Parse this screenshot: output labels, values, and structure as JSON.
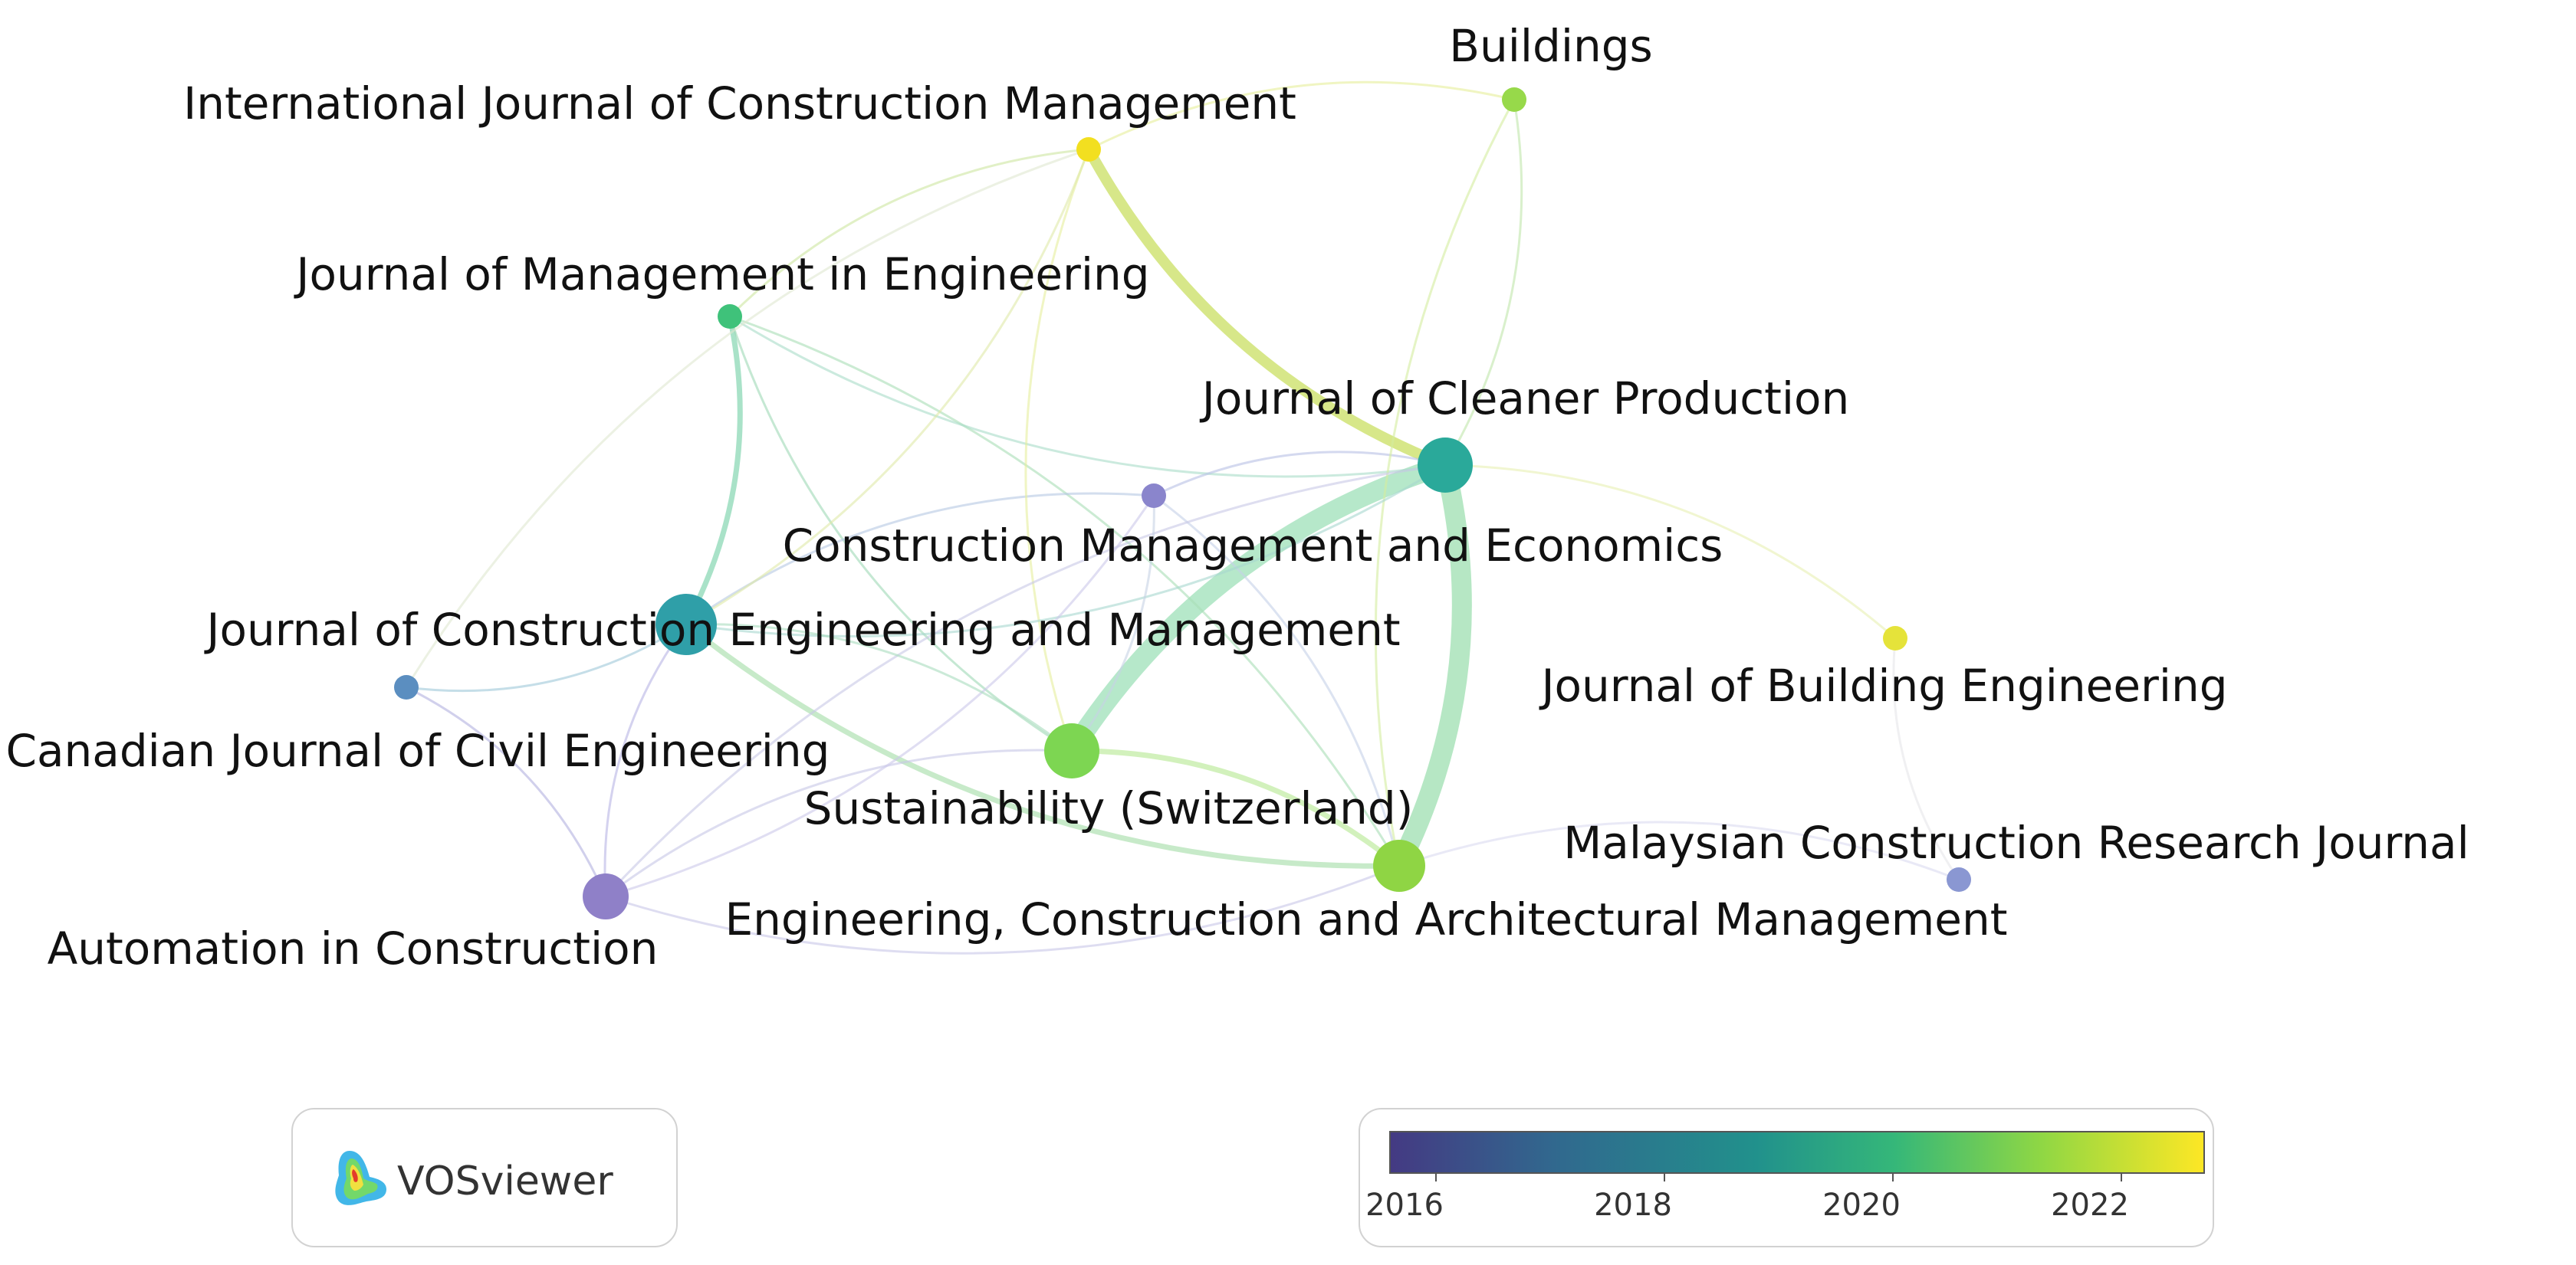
{
  "network": {
    "nodes": [
      {
        "id": "ijcm",
        "label": "International Journal of Construction Management",
        "color": "#f2df20",
        "size": "small"
      },
      {
        "id": "buildings",
        "label": "Buildings",
        "color": "#97d94a",
        "size": "small"
      },
      {
        "id": "jme",
        "label": "Journal of Management in Engineering",
        "color": "#3fc27a",
        "size": "small"
      },
      {
        "id": "jcp",
        "label": "Journal of Cleaner Production",
        "color": "#2aa99a",
        "size": "large"
      },
      {
        "id": "cme",
        "label": "Construction Management and Economics",
        "color": "#8a85cc",
        "size": "small"
      },
      {
        "id": "jceam",
        "label": "Journal of Construction Engineering and Management",
        "color": "#2f9fa8",
        "size": "large"
      },
      {
        "id": "cjce",
        "label": "Canadian Journal of Civil Engineering",
        "color": "#5b8ec0",
        "size": "small"
      },
      {
        "id": "sust",
        "label": "Sustainability (Switzerland)",
        "color": "#7dd652",
        "size": "large"
      },
      {
        "id": "jbe",
        "label": "Journal of Building Engineering",
        "color": "#e5e33a",
        "size": "small"
      },
      {
        "id": "ecam",
        "label": "Engineering, Construction and Architectural Management",
        "color": "#8fd544",
        "size": "large"
      },
      {
        "id": "mcrj",
        "label": "Malaysian Construction Research Journal",
        "color": "#8a97d2",
        "size": "small"
      },
      {
        "id": "aic",
        "label": "Automation in Construction",
        "color": "#8f80c8",
        "size": "large"
      }
    ],
    "links": [
      {
        "s": "ijcm",
        "t": "jcp",
        "w": 3,
        "c": "#c9df62"
      },
      {
        "s": "jcp",
        "t": "ecam",
        "w": 4,
        "c": "#9edfb0"
      },
      {
        "s": "jcp",
        "t": "sust",
        "w": 4,
        "c": "#9ee0b8"
      },
      {
        "s": "jme",
        "t": "jceam",
        "w": 2,
        "c": "#6fcfa3"
      },
      {
        "s": "jceam",
        "t": "ecam",
        "w": 2,
        "c": "#a2dca5"
      },
      {
        "s": "sust",
        "t": "ecam",
        "w": 2,
        "c": "#b4e890"
      },
      {
        "s": "jceam",
        "t": "aic",
        "w": 1,
        "c": "#b7b4e4"
      },
      {
        "s": "cjce",
        "t": "aic",
        "w": 1,
        "c": "#b3b0e0"
      },
      {
        "s": "cjce",
        "t": "jceam",
        "w": 1,
        "c": "#9fc8d8"
      },
      {
        "s": "jme",
        "t": "ijcm",
        "w": 1,
        "c": "#cde6a0"
      },
      {
        "s": "jme",
        "t": "sust",
        "w": 1,
        "c": "#9ed9b5"
      },
      {
        "s": "jme",
        "t": "ecam",
        "w": 1,
        "c": "#a8ddb5"
      },
      {
        "s": "jme",
        "t": "jcp",
        "w": 1,
        "c": "#a8dcc8"
      },
      {
        "s": "cme",
        "t": "jcp",
        "w": 1,
        "c": "#b8c0e4"
      },
      {
        "s": "cme",
        "t": "jceam",
        "w": 1,
        "c": "#b6c8e2"
      },
      {
        "s": "cme",
        "t": "ecam",
        "w": 1,
        "c": "#c4d0e8"
      },
      {
        "s": "buildings",
        "t": "ijcm",
        "w": 1,
        "c": "#e6ef9a"
      },
      {
        "s": "buildings",
        "t": "jcp",
        "w": 1,
        "c": "#bfe6aa"
      },
      {
        "s": "buildings",
        "t": "ecam",
        "w": 1,
        "c": "#d3ec9e"
      },
      {
        "s": "jcp",
        "t": "jbe",
        "w": 1,
        "c": "#e7f0b2"
      },
      {
        "s": "jbe",
        "t": "mcrj",
        "w": 1,
        "c": "#e6e6ea"
      },
      {
        "s": "ecam",
        "t": "mcrj",
        "w": 1,
        "c": "#dadaf0"
      },
      {
        "s": "ijcm",
        "t": "sust",
        "w": 1,
        "c": "#e6ee9c"
      },
      {
        "s": "ijcm",
        "t": "jceam",
        "w": 1,
        "c": "#dfe9a8"
      },
      {
        "s": "jceam",
        "t": "jcp",
        "w": 1,
        "c": "#a7d7cf"
      },
      {
        "s": "aic",
        "t": "sust",
        "w": 1,
        "c": "#c7c6e6"
      },
      {
        "s": "aic",
        "t": "ecam",
        "w": 1,
        "c": "#c8c6e8"
      },
      {
        "s": "aic",
        "t": "jcp",
        "w": 1,
        "c": "#c8c8e6"
      },
      {
        "s": "aic",
        "t": "cme",
        "w": 1,
        "c": "#cbc8ea"
      },
      {
        "s": "cjce",
        "t": "ijcm",
        "w": 1,
        "c": "#e0e8d0"
      },
      {
        "s": "sust",
        "t": "cme",
        "w": 1,
        "c": "#c6d2e4"
      },
      {
        "s": "jceam",
        "t": "sust",
        "w": 1,
        "c": "#a8dcbe"
      }
    ]
  },
  "legend": {
    "ticks": [
      "2016",
      "2018",
      "2020",
      "2022"
    ]
  },
  "logo": {
    "text": "VOSviewer"
  }
}
